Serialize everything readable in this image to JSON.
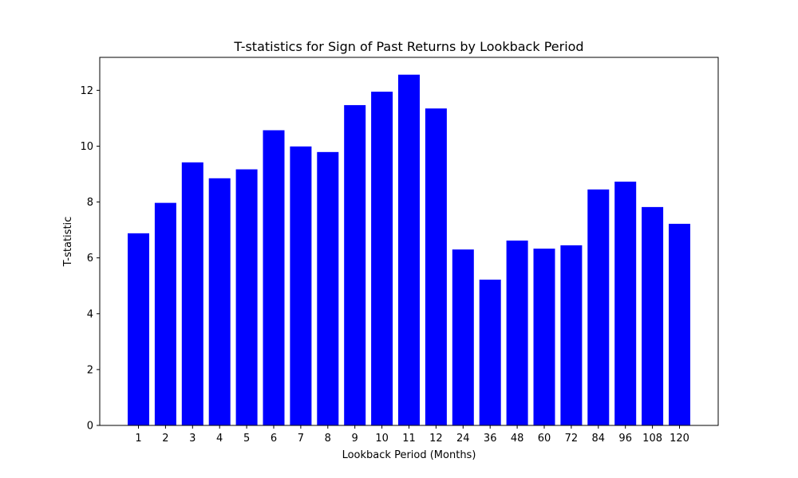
{
  "chart_data": {
    "type": "bar",
    "title": "T-statistics for Sign of Past Returns by Lookback Period",
    "xlabel": "Lookback Period (Months)",
    "ylabel": "T-statistic",
    "categories": [
      "1",
      "2",
      "3",
      "4",
      "5",
      "6",
      "7",
      "8",
      "9",
      "10",
      "11",
      "12",
      "24",
      "36",
      "48",
      "60",
      "72",
      "84",
      "96",
      "108",
      "120"
    ],
    "values": [
      6.88,
      7.97,
      9.42,
      8.85,
      9.17,
      10.57,
      9.99,
      9.79,
      11.47,
      11.95,
      12.56,
      11.35,
      6.3,
      5.22,
      6.62,
      6.33,
      6.45,
      8.45,
      8.73,
      7.82,
      7.22
    ],
    "ylim": [
      0,
      13.18
    ],
    "yticks": [
      0,
      2,
      4,
      6,
      8,
      10,
      12
    ],
    "bar_color": "#0000ff",
    "grid": false,
    "legend": "none"
  }
}
